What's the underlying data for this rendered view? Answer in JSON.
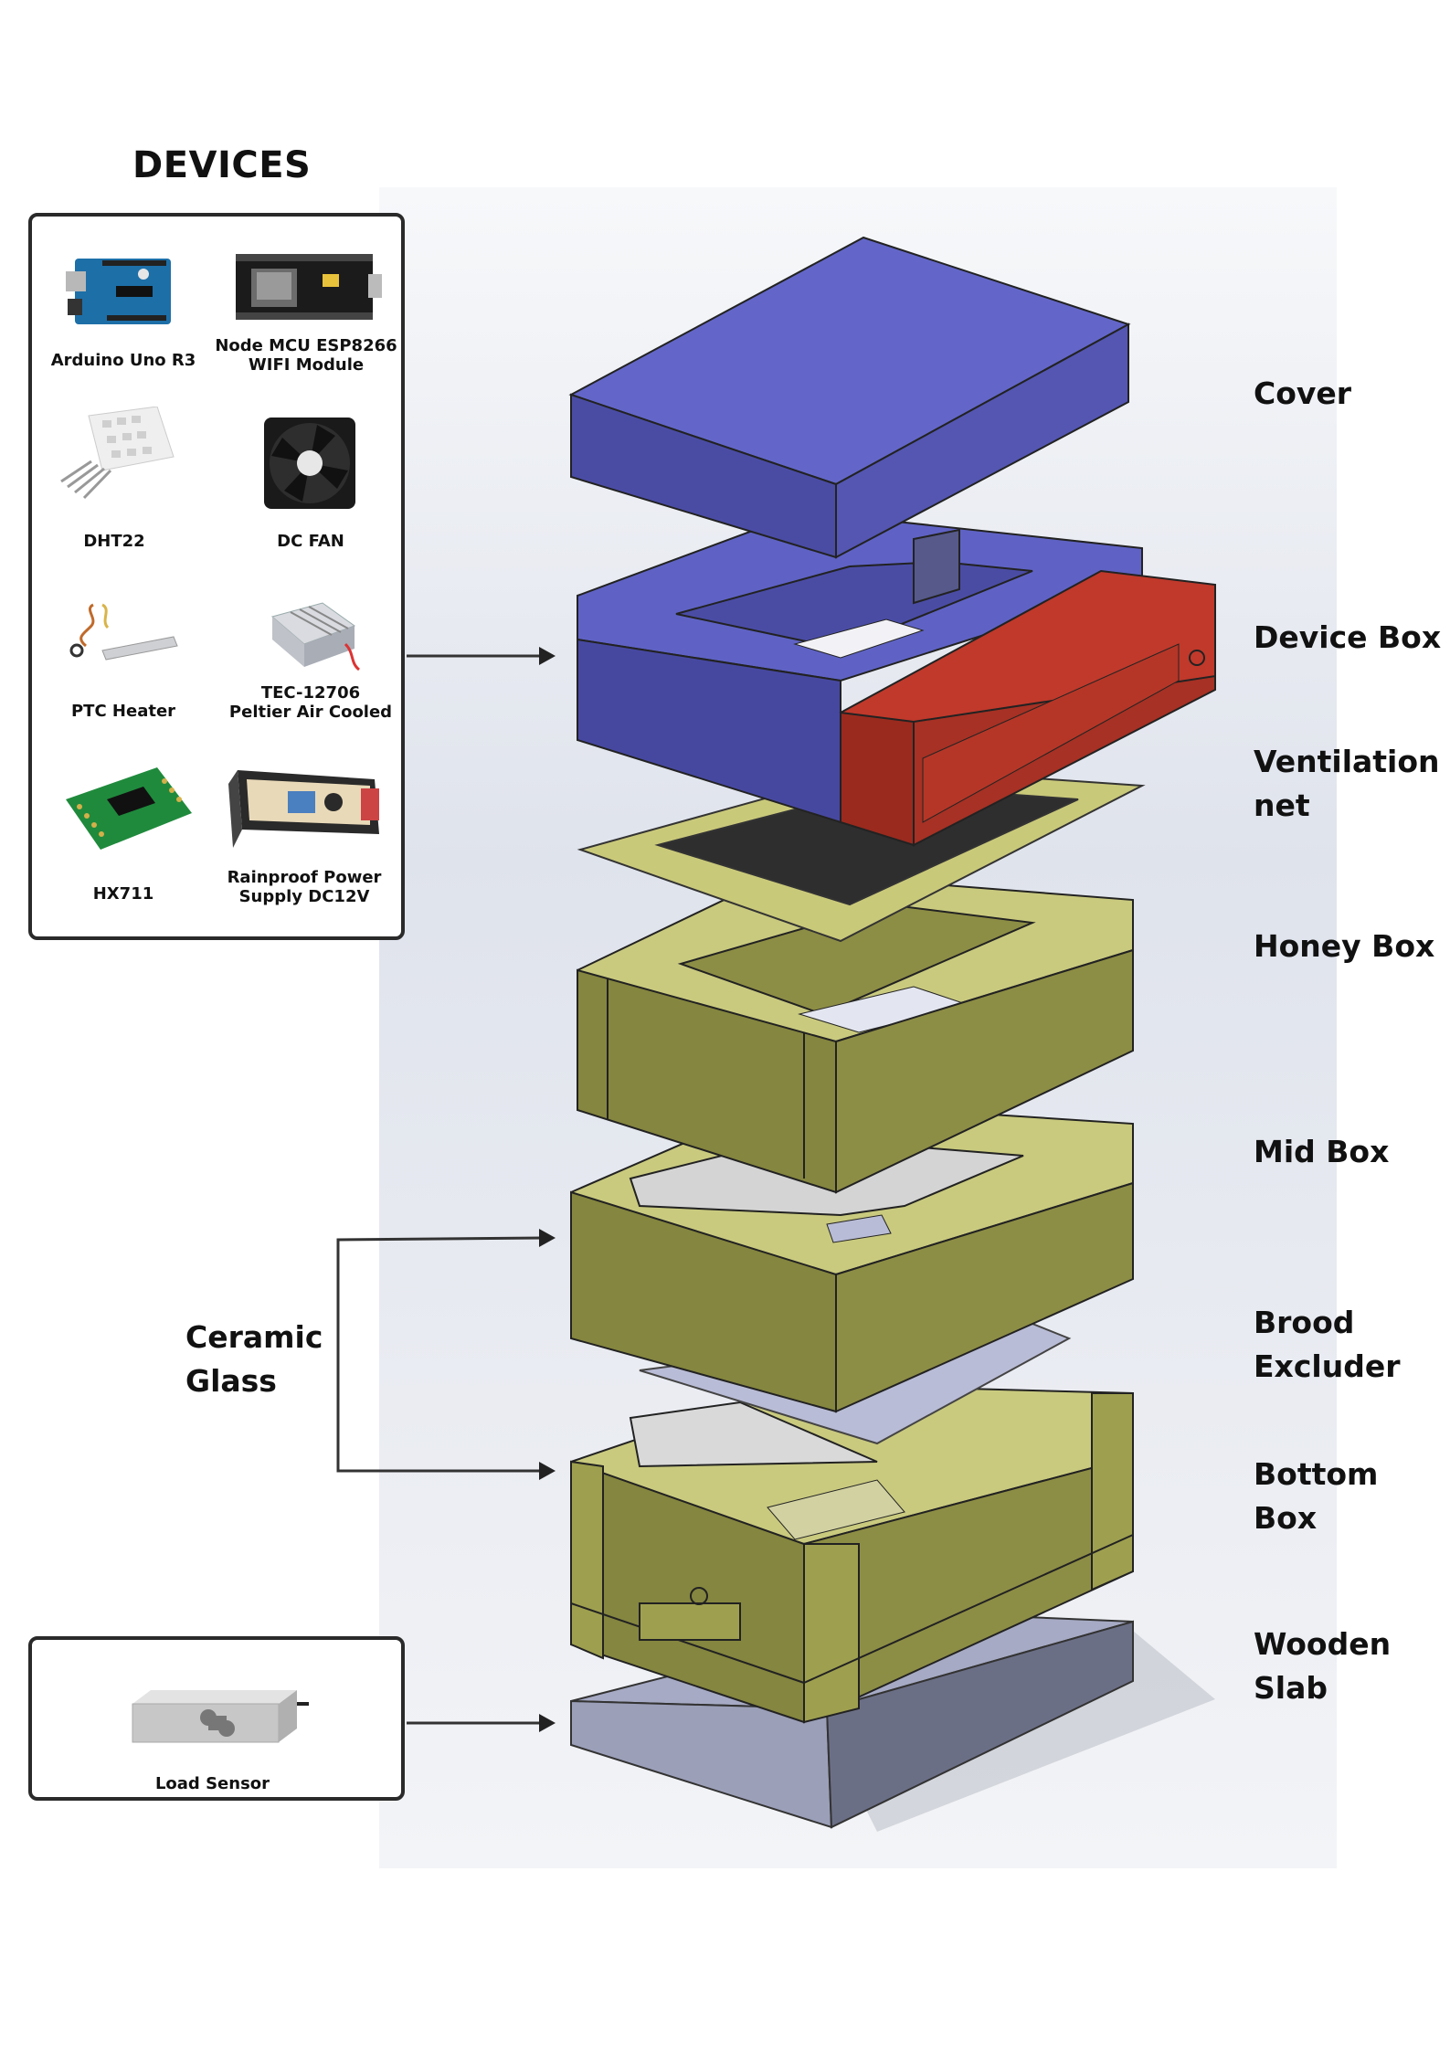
{
  "devices_title": "DEVICES",
  "devices": [
    {
      "label": "Arduino Uno R3",
      "icon": "arduino-board-icon"
    },
    {
      "label": "Node  MCU ESP8266\nWIFI Module",
      "icon": "esp8266-module-icon"
    },
    {
      "label": "DHT22",
      "icon": "dht22-sensor-icon"
    },
    {
      "label": "DC FAN",
      "icon": "dc-fan-icon"
    },
    {
      "label": "PTC Heater",
      "icon": "ptc-heater-icon"
    },
    {
      "label": "TEC-12706\nPeltier Air Cooled",
      "icon": "peltier-cooler-icon"
    },
    {
      "label": "HX711",
      "icon": "hx711-board-icon"
    },
    {
      "label": "Rainproof Power\nSupply DC12V",
      "icon": "power-supply-icon"
    }
  ],
  "load_sensor_label": "Load Sensor",
  "ceramic_glass_label": "Ceramic\nGlass",
  "layers": [
    {
      "label": "Cover",
      "color": "#5f62c4"
    },
    {
      "label": "Device Box",
      "color": "#c0392b"
    },
    {
      "label": "Ventilation\nnet",
      "color": "#c9c97a"
    },
    {
      "label": "Honey Box",
      "color": "#8d8e45"
    },
    {
      "label": "Mid Box",
      "color": "#8d8e45"
    },
    {
      "label": "Brood\nExcluder",
      "color": "#b9bcd6"
    },
    {
      "label": "Bottom Box",
      "color": "#8d8e45"
    },
    {
      "label": "Wooden\nSlab",
      "color": "#9b9fb8"
    }
  ]
}
